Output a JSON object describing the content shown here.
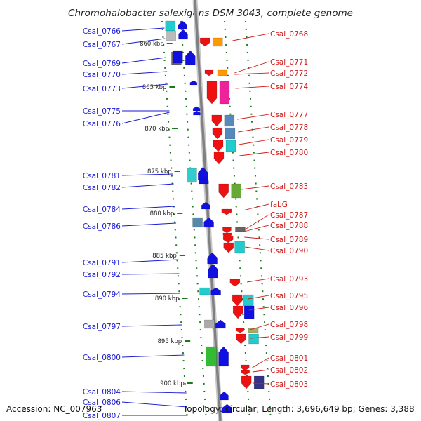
{
  "title": "Chromohalobacter salexigens DSM 3043, complete genome",
  "footer": {
    "accession": "Accession: NC_007963",
    "topology": "Topology: circular; Length: 3,696,649 bp; Genes: 3,388"
  },
  "colors": {
    "forward_label": "#1a1ad0",
    "reverse_label": "#d01a1a",
    "forward_gene": "#1010e0",
    "reverse_gene": "#ee1111",
    "tick": "#1a7a1a",
    "backbone": "#8a8a8a"
  },
  "ticks": [
    "860 kbp",
    "865 kbp",
    "870 kbp",
    "875 kbp",
    "880 kbp",
    "885 kbp",
    "890 kbp",
    "895 kbp",
    "900 kbp"
  ],
  "left_labels": [
    "Csal_0766",
    "Csal_0767",
    "Csal_0769",
    "Csal_0770",
    "Csal_0773",
    "Csal_0775",
    "Csal_0776",
    "Csal_0781",
    "Csal_0782",
    "Csal_0784",
    "Csal_0786",
    "Csal_0791",
    "Csal_0792",
    "Csal_0794",
    "Csal_0797",
    "Csal_0800",
    "Csal_0804",
    "Csal_0806",
    "Csal_0807"
  ],
  "right_labels": [
    "Csal_0768",
    "Csal_0771",
    "Csal_0772",
    "Csal_0774",
    "Csal_0777",
    "Csal_0778",
    "Csal_0779",
    "Csal_0780",
    "Csal_0783",
    "fabG",
    "Csal_0787",
    "Csal_0788",
    "Csal_0789",
    "Csal_0790",
    "Csal_0793",
    "Csal_0795",
    "Csal_0796",
    "Csal_0798",
    "Csal_0799",
    "Csal_0801",
    "Csal_0802",
    "Csal_0803"
  ]
}
